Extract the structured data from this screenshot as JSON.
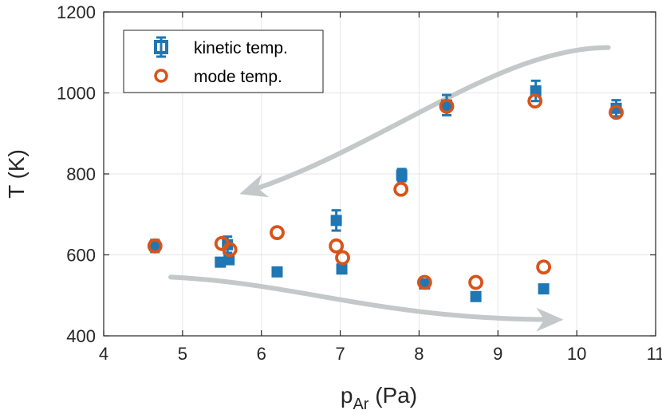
{
  "chart_data": {
    "type": "scatter",
    "xlabel": {
      "main": "p",
      "sub": "Ar",
      "unit": " (Pa)"
    },
    "ylabel": "T (K)",
    "xlim": [
      4,
      11
    ],
    "ylim": [
      400,
      1200
    ],
    "xticks": [
      "4",
      "5",
      "6",
      "7",
      "8",
      "9",
      "10",
      "11"
    ],
    "yticks": [
      "400",
      "600",
      "800",
      "1000",
      "1200"
    ],
    "grid": true,
    "legend_position": "top-left",
    "series": [
      {
        "name": "kinetic temp.",
        "marker": "square",
        "color": "#1f77b4",
        "points": [
          {
            "x": 4.65,
            "y": 622,
            "err": 15
          },
          {
            "x": 5.48,
            "y": 582,
            "err": 5
          },
          {
            "x": 5.57,
            "y": 625,
            "err": 20
          },
          {
            "x": 5.59,
            "y": 588,
            "err": 10
          },
          {
            "x": 6.2,
            "y": 558,
            "err": 5
          },
          {
            "x": 6.95,
            "y": 685,
            "err": 25
          },
          {
            "x": 7.02,
            "y": 565,
            "err": 5
          },
          {
            "x": 7.78,
            "y": 797,
            "err": 15
          },
          {
            "x": 8.07,
            "y": 528,
            "err": 10
          },
          {
            "x": 8.35,
            "y": 970,
            "err": 25
          },
          {
            "x": 8.72,
            "y": 497,
            "err": 5
          },
          {
            "x": 9.48,
            "y": 1005,
            "err": 25
          },
          {
            "x": 9.58,
            "y": 516,
            "err": 5
          },
          {
            "x": 10.5,
            "y": 962,
            "err": 20
          }
        ]
      },
      {
        "name": "mode temp.",
        "marker": "circle",
        "color": "#d95319",
        "points": [
          {
            "x": 4.65,
            "y": 622
          },
          {
            "x": 5.5,
            "y": 628
          },
          {
            "x": 5.6,
            "y": 613
          },
          {
            "x": 6.2,
            "y": 655
          },
          {
            "x": 6.95,
            "y": 622
          },
          {
            "x": 7.03,
            "y": 593
          },
          {
            "x": 7.77,
            "y": 762
          },
          {
            "x": 8.07,
            "y": 532
          },
          {
            "x": 8.35,
            "y": 967
          },
          {
            "x": 8.72,
            "y": 532
          },
          {
            "x": 9.47,
            "y": 980
          },
          {
            "x": 9.58,
            "y": 570
          },
          {
            "x": 10.5,
            "y": 952
          }
        ]
      }
    ],
    "annotations": [
      {
        "type": "arrow",
        "direction": "decreasing-pressure",
        "color": "#c4c8c8",
        "path": [
          [
            10.4,
            1112
          ],
          [
            9.0,
            1112
          ],
          [
            7.5,
            860
          ],
          [
            5.8,
            755
          ]
        ]
      },
      {
        "type": "arrow",
        "direction": "increasing-pressure",
        "color": "#c4c8c8",
        "path": [
          [
            4.85,
            545
          ],
          [
            6.5,
            530
          ],
          [
            7.5,
            440
          ],
          [
            9.75,
            440
          ]
        ]
      }
    ]
  }
}
